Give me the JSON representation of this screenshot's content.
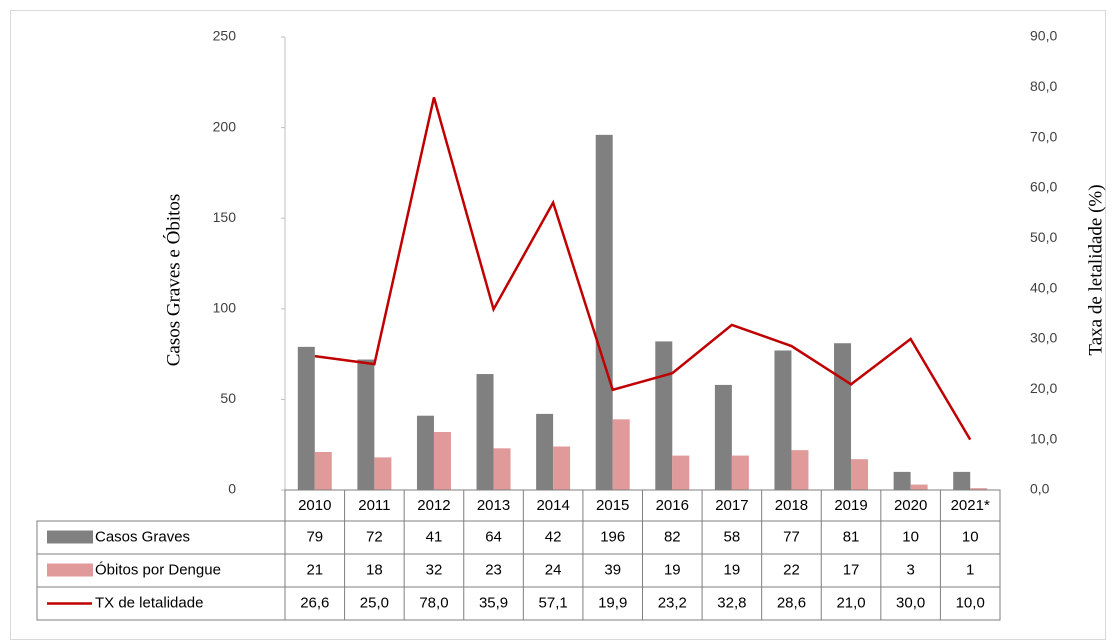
{
  "chart_data": {
    "type": "bar",
    "ylabel": "Casos  Graves e Óbitos",
    "y2label": "Taxa de letalidade (%)",
    "categories": [
      "2010",
      "2011",
      "2012",
      "2013",
      "2014",
      "2015",
      "2016",
      "2017",
      "2018",
      "2019",
      "2020",
      "2021*"
    ],
    "ylim": [
      0,
      250
    ],
    "yticks": [
      0,
      50,
      100,
      150,
      200,
      250
    ],
    "y2lim": [
      0,
      90
    ],
    "y2ticks": [
      {
        "value": 0,
        "label": "0,0"
      },
      {
        "value": 10,
        "label": "10,0"
      },
      {
        "value": 20,
        "label": "20,0"
      },
      {
        "value": 30,
        "label": "30,0"
      },
      {
        "value": 40,
        "label": "40,0"
      },
      {
        "value": 50,
        "label": "50,0"
      },
      {
        "value": 60,
        "label": "60,0"
      },
      {
        "value": 70,
        "label": "70,0"
      },
      {
        "value": 80,
        "label": "80,0"
      },
      {
        "value": 90,
        "label": "90,0"
      }
    ],
    "series": [
      {
        "name": "Casos Graves",
        "color": "#808080",
        "values": [
          79,
          72,
          41,
          64,
          42,
          196,
          82,
          58,
          77,
          81,
          10,
          10
        ]
      },
      {
        "name": "Óbitos por Dengue",
        "color": "#e09a9a",
        "values": [
          21,
          18,
          32,
          23,
          24,
          39,
          19,
          19,
          22,
          17,
          3,
          1
        ]
      },
      {
        "name": "TX de letalidade",
        "type": "line",
        "axis": "y2",
        "color": "#c00000",
        "values": [
          26.6,
          25.0,
          78.0,
          35.9,
          57.1,
          19.9,
          23.2,
          32.8,
          28.6,
          21.0,
          30.0,
          10.0
        ],
        "value_labels": [
          "26,6",
          "25,0",
          "78,0",
          "35,9",
          "57,1",
          "19,9",
          "23,2",
          "32,8",
          "28,6",
          "21,0",
          "30,0",
          "10,0"
        ]
      }
    ]
  }
}
